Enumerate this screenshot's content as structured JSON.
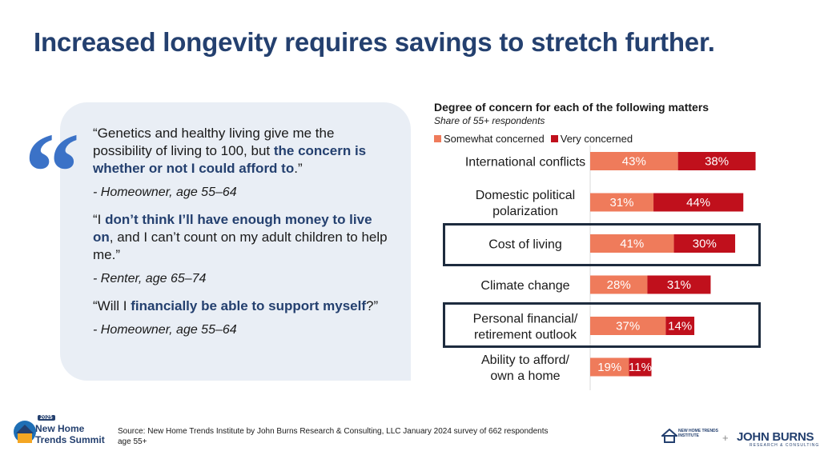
{
  "title": "Increased longevity requires savings to stretch further.",
  "quotes": [
    {
      "parts": [
        {
          "t": "“Genetics and healthy living give me the possibility of living to 100, but ",
          "h": false
        },
        {
          "t": "the concern is whether or not I could afford to",
          "h": true
        },
        {
          "t": ".”",
          "h": false
        }
      ],
      "attribution": "- Homeowner, age 55–64"
    },
    {
      "parts": [
        {
          "t": "“I ",
          "h": false
        },
        {
          "t": "don’t think I’ll have enough money to live on",
          "h": true
        },
        {
          "t": ", and I can’t count on my adult children to help me.”",
          "h": false
        }
      ],
      "attribution": "- Renter, age 65–74"
    },
    {
      "parts": [
        {
          "t": "“Will I ",
          "h": false
        },
        {
          "t": "financially be able to support myself",
          "h": true
        },
        {
          "t": "?”",
          "h": false
        }
      ],
      "attribution": "- Homeowner, age 55–64"
    }
  ],
  "chart_data": {
    "type": "bar",
    "orientation": "horizontal",
    "stacked": true,
    "title": "Degree of concern for each of the following matters",
    "subtitle": "Share of 55+ respondents",
    "legend_position": "top-left",
    "categories": [
      [
        "International conflicts"
      ],
      [
        "Domestic political",
        "polarization"
      ],
      [
        "Cost of living"
      ],
      [
        "Climate change"
      ],
      [
        "Personal financial/",
        "retirement outlook"
      ],
      [
        "Ability to afford/",
        "own a home"
      ]
    ],
    "series": [
      {
        "name": "Somewhat concerned",
        "color": "#ef7b5b",
        "values": [
          43,
          31,
          41,
          28,
          37,
          19
        ]
      },
      {
        "name": "Very concerned",
        "color": "#c0101c",
        "values": [
          38,
          44,
          30,
          31,
          14,
          11
        ]
      }
    ],
    "value_suffix": "%",
    "highlighted_categories": [
      "Cost of living",
      "Personal financial/ retirement outlook"
    ]
  },
  "footer": {
    "source_line1": "Source: New Home Trends Institute by John Burns Research & Consulting, LLC January 2024 survey of 662 respondents",
    "source_line2": "age 55+",
    "summit_year": "2025",
    "summit_line1": "New Home",
    "summit_line2": "Trends Summit",
    "nht_line1": "NEW HOME TRENDS",
    "nht_line2": "INSTITUTE",
    "plus": "+",
    "jb_name": "JOHN BURNS",
    "jb_sub": "RESEARCH & CONSULTING"
  }
}
